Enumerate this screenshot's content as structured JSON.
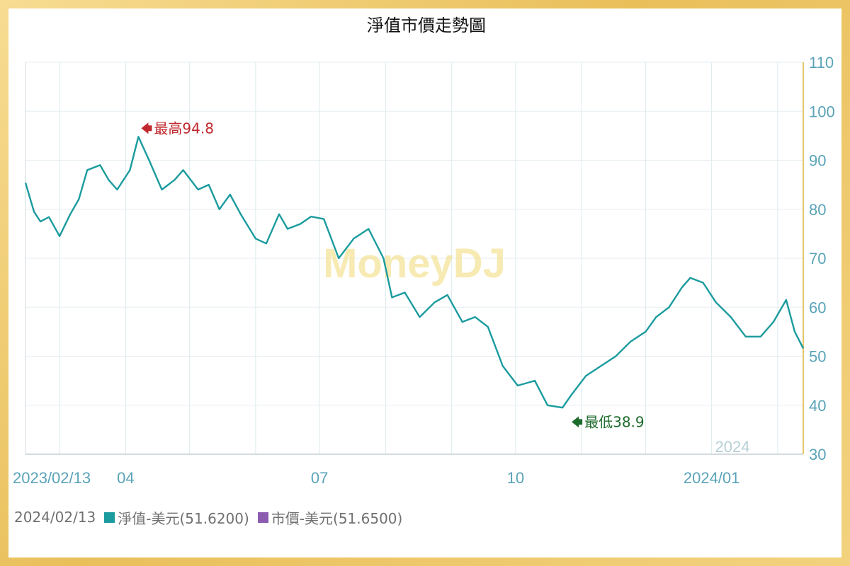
{
  "chart_data": {
    "type": "line",
    "title": "淨值市價走勢圖",
    "watermark": "MoneyDJ",
    "year_marker": "2024",
    "x_tick_labels": [
      "2023/02/13",
      "04",
      "07",
      "10",
      "2024/01"
    ],
    "ylim": [
      30,
      110
    ],
    "y_ticks": [
      30,
      40,
      50,
      60,
      70,
      80,
      90,
      100,
      110
    ],
    "y_axis_side": "right",
    "grid": true,
    "colors": {
      "nav": "#1b9b9e",
      "market": "#8c5cb0",
      "axis_text": "#5aa3b8",
      "max": "#c0282e",
      "min": "#1d6b2c"
    },
    "series": [
      {
        "name": "淨值-美元",
        "x": [
          "2023-02-13",
          "2023-02-17",
          "2023-02-20",
          "2023-02-24",
          "2023-03-01",
          "2023-03-06",
          "2023-03-10",
          "2023-03-14",
          "2023-03-20",
          "2023-03-24",
          "2023-03-28",
          "2023-04-03",
          "2023-04-07",
          "2023-04-12",
          "2023-04-14",
          "2023-04-18",
          "2023-04-24",
          "2023-04-28",
          "2023-05-05",
          "2023-05-10",
          "2023-05-15",
          "2023-05-20",
          "2023-05-25",
          "2023-06-01",
          "2023-06-06",
          "2023-06-12",
          "2023-06-16",
          "2023-06-22",
          "2023-06-27",
          "2023-07-03",
          "2023-07-10",
          "2023-07-17",
          "2023-07-24",
          "2023-07-31",
          "2023-08-04",
          "2023-08-10",
          "2023-08-17",
          "2023-08-24",
          "2023-08-30",
          "2023-09-06",
          "2023-09-12",
          "2023-09-18",
          "2023-09-25",
          "2023-10-02",
          "2023-10-10",
          "2023-10-16",
          "2023-10-23",
          "2023-10-27",
          "2023-11-03",
          "2023-11-10",
          "2023-11-17",
          "2023-11-24",
          "2023-12-01",
          "2023-12-06",
          "2023-12-12",
          "2023-12-18",
          "2023-12-22",
          "2023-12-28",
          "2024-01-03",
          "2024-01-10",
          "2024-01-17",
          "2024-01-24",
          "2024-01-30",
          "2024-02-05",
          "2024-02-09",
          "2024-02-13"
        ],
        "values": [
          85.4,
          79.5,
          77.5,
          78.4,
          74.5,
          79.0,
          82.0,
          88.0,
          89.0,
          86.0,
          84.0,
          88.0,
          94.8,
          90.0,
          88.0,
          84.0,
          86.0,
          88.0,
          84.0,
          85.0,
          80.0,
          83.0,
          79.0,
          74.0,
          73.0,
          79.0,
          76.0,
          77.0,
          78.5,
          78.0,
          70.0,
          74.0,
          76.0,
          70.0,
          62.0,
          63.0,
          58.0,
          61.0,
          62.5,
          57.0,
          58.0,
          56.0,
          48.0,
          44.0,
          45.0,
          40.0,
          39.5,
          42.0,
          46.0,
          48.0,
          50.0,
          53.0,
          55.0,
          58.0,
          60.0,
          64.0,
          66.0,
          65.0,
          61.0,
          58.0,
          54.0,
          54.0,
          57.0,
          61.5,
          55.0,
          51.6
        ]
      },
      {
        "name": "市價-美元",
        "values": []
      }
    ],
    "annotations": [
      {
        "label": "最高94.8",
        "x": "2023-04-07",
        "y": 94.8
      },
      {
        "label": "最低38.9",
        "x": "2023-10-26",
        "y": 38.9
      }
    ],
    "legend": {
      "date": "2024/02/13",
      "items": [
        {
          "label": "淨值-美元(51.6200)",
          "color": "#1b9b9e"
        },
        {
          "label": "市價-美元(51.6500)",
          "color": "#8c5cb0"
        }
      ]
    }
  }
}
